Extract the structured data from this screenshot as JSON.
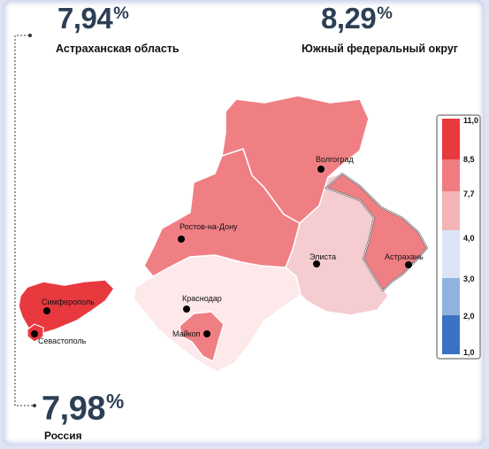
{
  "stats": {
    "astrakhan": {
      "value": "7,94",
      "unit": "%",
      "label": "Астраханская область"
    },
    "south": {
      "value": "8,29",
      "unit": "%",
      "label": "Южный федеральный округ"
    },
    "russia": {
      "value": "7,98",
      "unit": "%",
      "label": "Россия"
    }
  },
  "cities": {
    "simferopol": "Симферополь",
    "sevastopol": "Севастополь",
    "rostov": "Ростов-на-Дону",
    "volgograd": "Волгоград",
    "elista": "Элиста",
    "astrakhan": "Астрахань",
    "krasnodar": "Краснодар",
    "maykop": "Майкоп"
  },
  "legend": {
    "ticks": [
      "11,0",
      "8,5",
      "7,7",
      "4,0",
      "3,0",
      "2,0",
      "1,0"
    ],
    "colors": [
      "#e8393f",
      "#f07c80",
      "#f4b4b7",
      "#dbe5f5",
      "#8fb3dc",
      "#3a73c4"
    ]
  },
  "colors": {
    "crimea": "#e8393f",
    "mid": "#f07f84",
    "light": "#f5cdd1",
    "very_light": "#fde8ea",
    "border": "#ffffff",
    "title": "#2d3f54"
  }
}
